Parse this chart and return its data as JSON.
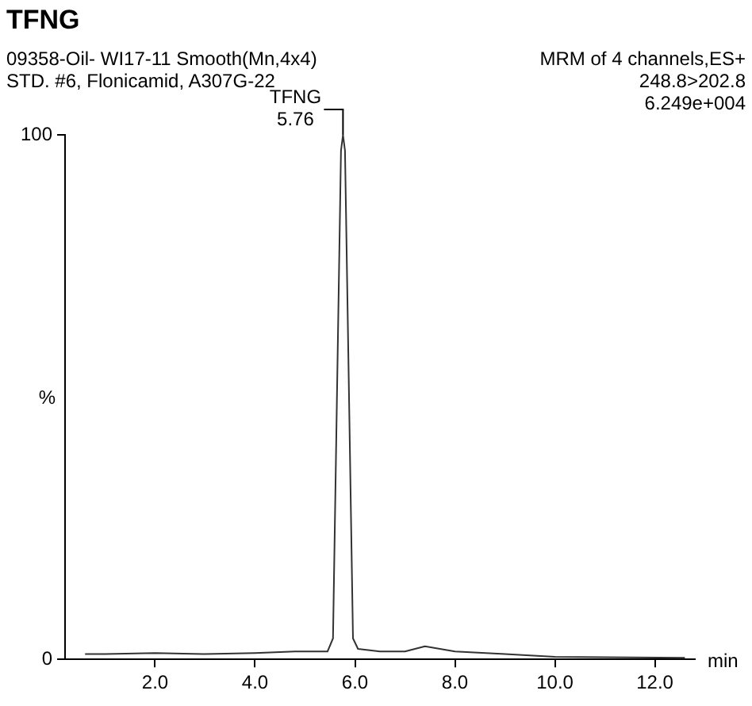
{
  "chart_data": {
    "type": "line",
    "title": "TFNG",
    "subtitle": "09358-Oil- WI17-11 Smooth(Mn,4x4)",
    "annotations": [
      "STD. #6, Flonicamid, A307G-22",
      "MRM of 4 channels,ES+",
      "248.8>202.8",
      "6.249e+004",
      {
        "text": "TFNG",
        "x": 5.76,
        "y": 100
      },
      {
        "text": "5.76",
        "x": 5.76,
        "y": 100
      }
    ],
    "xlabel": "min",
    "ylabel": "%",
    "series": [
      {
        "color": "#333333",
        "x": [
          0.6,
          1.0,
          2.0,
          3.0,
          4.0,
          4.8,
          5.45,
          5.56,
          5.72,
          5.76,
          5.8,
          5.96,
          6.06,
          6.5,
          7.0,
          7.4,
          8.0,
          9.0,
          10.0,
          11.0,
          12.6
        ],
        "values": [
          1,
          1,
          1.2,
          1,
          1.2,
          1.5,
          1.5,
          4,
          97,
          100,
          97,
          4,
          2,
          1.5,
          1.5,
          2.5,
          1.5,
          1,
          0.5,
          0.4,
          0.3
        ]
      }
    ],
    "xlim": [
      0.2,
      12.8
    ],
    "ylim": [
      0,
      100
    ],
    "xticks": [
      {
        "value": 2,
        "label": "2.0"
      },
      {
        "value": 4,
        "label": "4.0"
      },
      {
        "value": 6,
        "label": "6.0"
      },
      {
        "value": 8,
        "label": "8.0"
      },
      {
        "value": 10,
        "label": "10.0"
      },
      {
        "value": 12,
        "label": "12.0"
      }
    ],
    "yticks": [
      0,
      100
    ],
    "grid": false,
    "legend": false
  }
}
